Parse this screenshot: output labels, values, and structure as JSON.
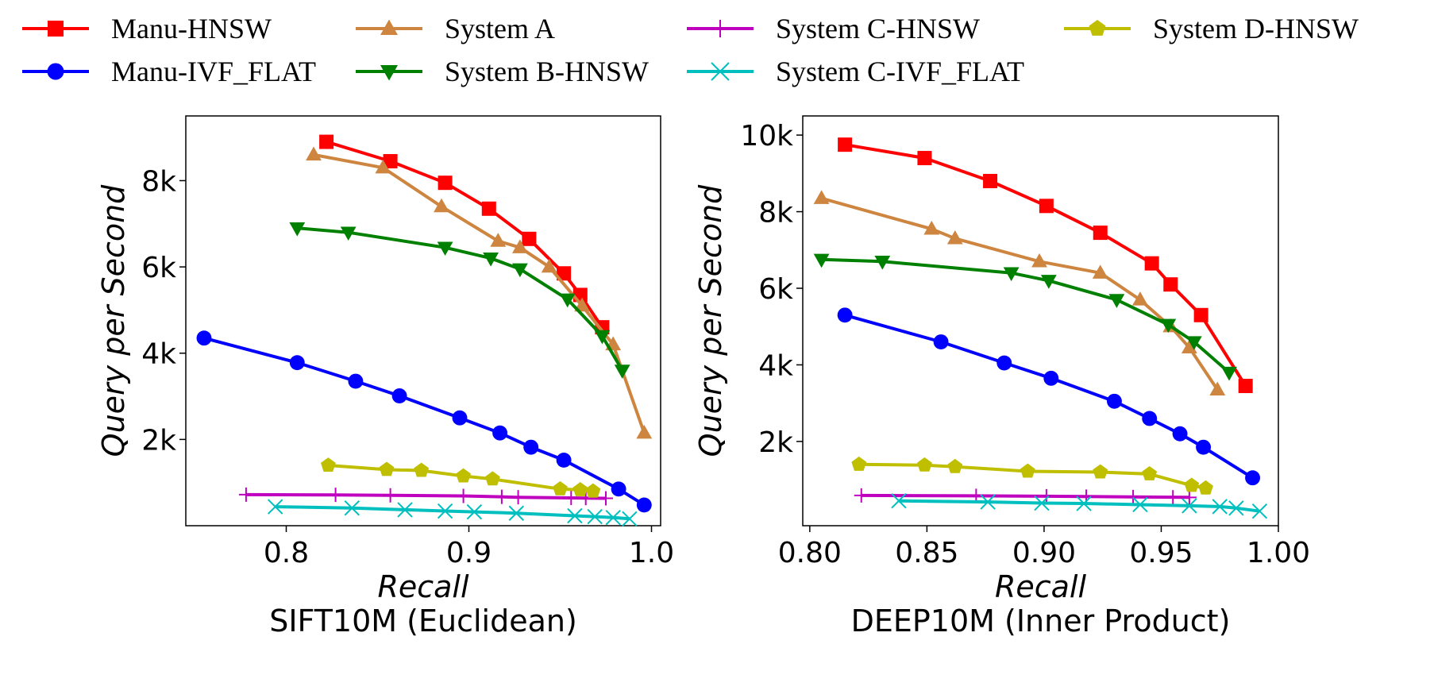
{
  "chart_data": [
    {
      "type": "line",
      "title": "SIFT10M (Euclidean)",
      "xlabel": "Recall",
      "ylabel": "Query per Second",
      "xlim": [
        0.745,
        1.005
      ],
      "ylim": [
        0,
        9500
      ],
      "xticks": [
        0.8,
        0.9,
        1.0
      ],
      "xtick_labels": [
        "0.8",
        "0.9",
        "1.0"
      ],
      "yticks": [
        2000,
        4000,
        6000,
        8000
      ],
      "ytick_labels": [
        "2k",
        "4k",
        "6k",
        "8k"
      ],
      "grid": false,
      "series": [
        {
          "name": "Manu-HNSW",
          "x": [
            0.822,
            0.857,
            0.887,
            0.911,
            0.933,
            0.952,
            0.961,
            0.973
          ],
          "y": [
            8900,
            8450,
            7950,
            7350,
            6650,
            5850,
            5350,
            4600
          ]
        },
        {
          "name": "Manu-IVF_FLAT",
          "x": [
            0.755,
            0.806,
            0.838,
            0.862,
            0.895,
            0.917,
            0.934,
            0.952,
            0.982,
            0.996
          ],
          "y": [
            4350,
            3780,
            3350,
            3010,
            2500,
            2150,
            1820,
            1520,
            850,
            480
          ]
        },
        {
          "name": "System A",
          "x": [
            0.815,
            0.853,
            0.885,
            0.916,
            0.928,
            0.944,
            0.962,
            0.979,
            0.996
          ],
          "y": [
            8600,
            8300,
            7400,
            6600,
            6450,
            6000,
            5100,
            4200,
            2150
          ]
        },
        {
          "name": "System B-HNSW",
          "x": [
            0.806,
            0.834,
            0.887,
            0.912,
            0.928,
            0.954,
            0.973,
            0.984
          ],
          "y": [
            6900,
            6800,
            6450,
            6200,
            5950,
            5250,
            4400,
            3600
          ]
        },
        {
          "name": "System C-HNSW",
          "x": [
            0.778,
            0.827,
            0.857,
            0.897,
            0.918,
            0.927,
            0.956,
            0.964,
            0.975
          ],
          "y": [
            720,
            715,
            705,
            690,
            670,
            660,
            645,
            640,
            635
          ]
        },
        {
          "name": "System C-IVF_FLAT",
          "x": [
            0.794,
            0.836,
            0.865,
            0.887,
            0.903,
            0.926,
            0.958,
            0.969,
            0.979,
            0.988
          ],
          "y": [
            440,
            410,
            370,
            340,
            320,
            290,
            230,
            210,
            190,
            160
          ]
        },
        {
          "name": "System D-HNSW",
          "x": [
            0.823,
            0.855,
            0.874,
            0.897,
            0.913,
            0.95,
            0.961,
            0.968
          ],
          "y": [
            1400,
            1300,
            1280,
            1150,
            1080,
            850,
            830,
            800
          ]
        }
      ]
    },
    {
      "type": "line",
      "title": "DEEP10M (Inner Product)",
      "xlabel": "Recall",
      "ylabel": "Query per Second",
      "xlim": [
        0.797,
        1.0
      ],
      "ylim": [
        -200,
        10500
      ],
      "xticks": [
        0.8,
        0.85,
        0.9,
        0.95,
        1.0
      ],
      "xtick_labels": [
        "0.80",
        "0.85",
        "0.90",
        "0.95",
        "1.00"
      ],
      "yticks": [
        2000,
        4000,
        6000,
        8000,
        10000
      ],
      "ytick_labels": [
        "2k",
        "4k",
        "6k",
        "8k",
        "10k"
      ],
      "grid": false,
      "series": [
        {
          "name": "Manu-HNSW",
          "x": [
            0.815,
            0.849,
            0.877,
            0.901,
            0.924,
            0.946,
            0.954,
            0.967,
            0.986
          ],
          "y": [
            9750,
            9400,
            8800,
            8150,
            7450,
            6650,
            6100,
            5300,
            3450
          ]
        },
        {
          "name": "Manu-IVF_FLAT",
          "x": [
            0.815,
            0.856,
            0.883,
            0.903,
            0.93,
            0.945,
            0.958,
            0.968,
            0.989
          ],
          "y": [
            5300,
            4600,
            4050,
            3650,
            3050,
            2600,
            2200,
            1850,
            1050
          ]
        },
        {
          "name": "System A",
          "x": [
            0.805,
            0.852,
            0.862,
            0.898,
            0.924,
            0.941,
            0.954,
            0.962,
            0.974
          ],
          "y": [
            8350,
            7550,
            7300,
            6700,
            6400,
            5700,
            5000,
            4450,
            3350
          ]
        },
        {
          "name": "System B-HNSW",
          "x": [
            0.805,
            0.831,
            0.886,
            0.902,
            0.931,
            0.953,
            0.964,
            0.979
          ],
          "y": [
            6750,
            6700,
            6400,
            6200,
            5700,
            5050,
            4600,
            3800
          ]
        },
        {
          "name": "System C-HNSW",
          "x": [
            0.822,
            0.871,
            0.901,
            0.918,
            0.938,
            0.955,
            0.962
          ],
          "y": [
            590,
            580,
            570,
            560,
            550,
            545,
            540
          ]
        },
        {
          "name": "System C-IVF_FLAT",
          "x": [
            0.838,
            0.876,
            0.899,
            0.917,
            0.941,
            0.962,
            0.975,
            0.982,
            0.992
          ],
          "y": [
            450,
            420,
            390,
            380,
            350,
            320,
            300,
            260,
            180
          ]
        },
        {
          "name": "System D-HNSW",
          "x": [
            0.821,
            0.849,
            0.862,
            0.893,
            0.924,
            0.945,
            0.963,
            0.969
          ],
          "y": [
            1400,
            1380,
            1340,
            1220,
            1200,
            1150,
            850,
            780
          ]
        }
      ]
    }
  ],
  "legend": {
    "placement": "top",
    "entries": [
      {
        "name": "Manu-HNSW",
        "color": "#ff0000",
        "marker": "square"
      },
      {
        "name": "System A",
        "color": "#cd853f",
        "marker": "triangle-up"
      },
      {
        "name": "System C-HNSW",
        "color": "#bf00bf",
        "marker": "plus"
      },
      {
        "name": "System D-HNSW",
        "color": "#bfbf00",
        "marker": "pentagon"
      },
      {
        "name": "Manu-IVF_FLAT",
        "color": "#0000ff",
        "marker": "circle"
      },
      {
        "name": "System B-HNSW",
        "color": "#008000",
        "marker": "triangle-down"
      },
      {
        "name": "System C-IVF_FLAT",
        "color": "#00bfbf",
        "marker": "x"
      }
    ]
  }
}
